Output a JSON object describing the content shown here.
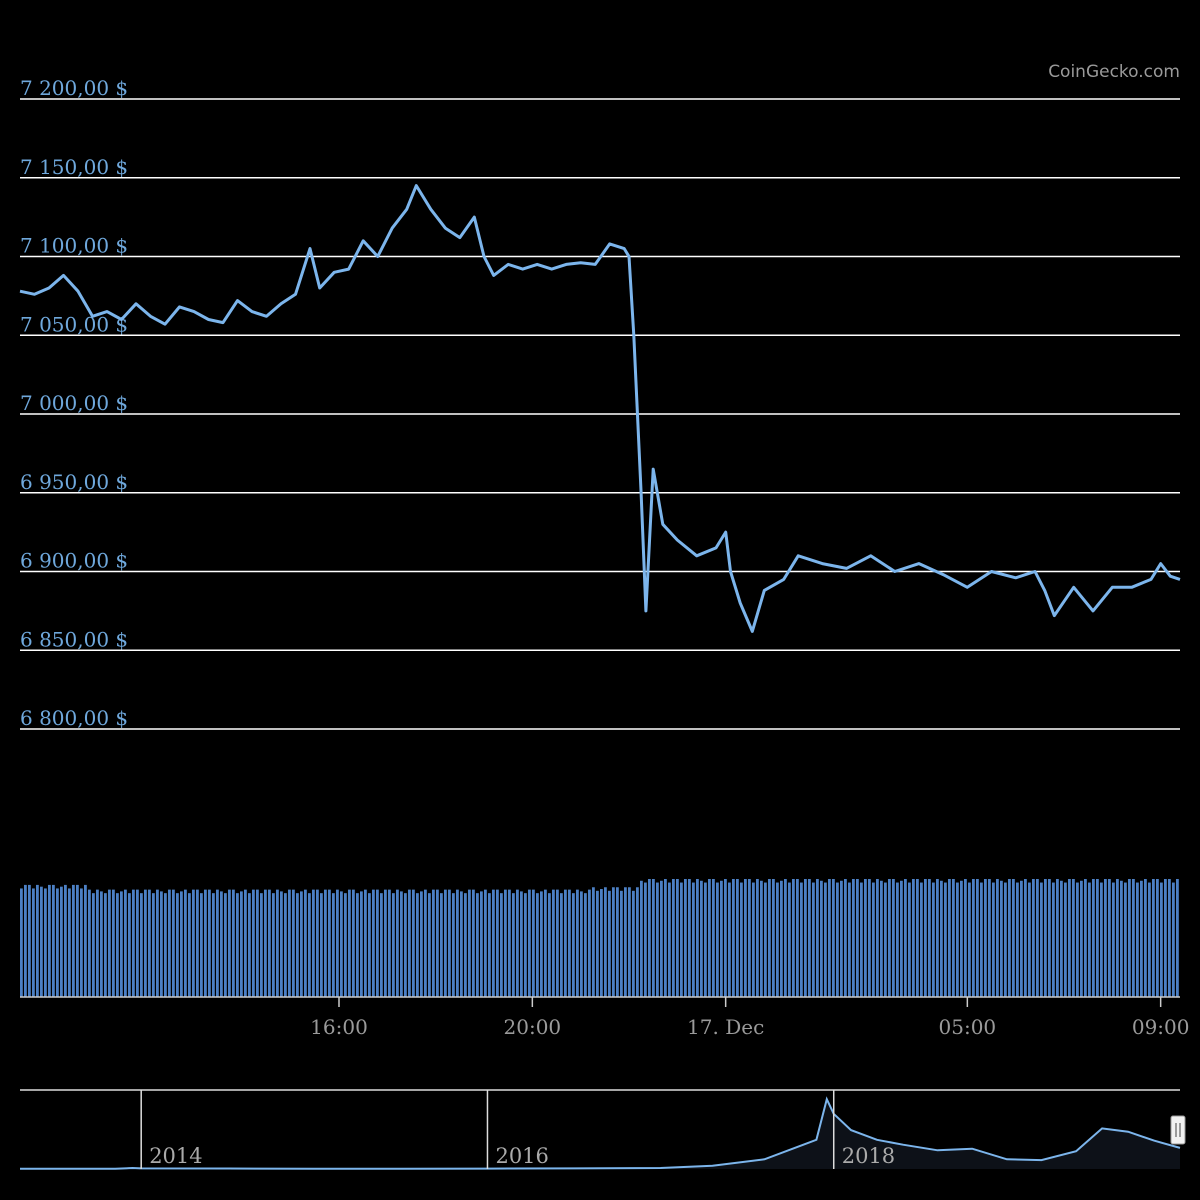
{
  "credit": "CoinGecko.com",
  "colors": {
    "background": "#000000",
    "line": "#7cb5ec",
    "volume": "#4c80c4",
    "grid": "#ffffff",
    "axis_label": "#6fa8dc",
    "time_label": "#9a9a9a"
  },
  "chart_data": {
    "type": "line",
    "title": "",
    "grid": true,
    "ylim": [
      6800,
      7200
    ],
    "y_ticks": [
      7200,
      7150,
      7100,
      7050,
      7000,
      6950,
      6900,
      6850,
      6800
    ],
    "y_tick_labels": [
      "7 200,00 $",
      "7 150,00 $",
      "7 100,00 $",
      "7 050,00 $",
      "7 000,00 $",
      "6 950,00 $",
      "6 900,00 $",
      "6 850,00 $",
      "6 800,00 $"
    ],
    "x_tick_labels": [
      "16:00",
      "20:00",
      "17. Dec",
      "05:00",
      "09:00"
    ],
    "x_ticks_hours": [
      16,
      20,
      24,
      29,
      33
    ],
    "xlim_hours": [
      9.4,
      33.4
    ],
    "series": [
      {
        "type": "line",
        "points": [
          [
            9.4,
            7078
          ],
          [
            9.7,
            7076
          ],
          [
            10.0,
            7080
          ],
          [
            10.3,
            7088
          ],
          [
            10.6,
            7078
          ],
          [
            10.9,
            7062
          ],
          [
            11.2,
            7065
          ],
          [
            11.5,
            7060
          ],
          [
            11.8,
            7070
          ],
          [
            12.1,
            7062
          ],
          [
            12.4,
            7057
          ],
          [
            12.7,
            7068
          ],
          [
            13.0,
            7065
          ],
          [
            13.3,
            7060
          ],
          [
            13.6,
            7058
          ],
          [
            13.9,
            7072
          ],
          [
            14.2,
            7065
          ],
          [
            14.5,
            7062
          ],
          [
            14.8,
            7070
          ],
          [
            15.1,
            7076
          ],
          [
            15.4,
            7105
          ],
          [
            15.6,
            7080
          ],
          [
            15.9,
            7090
          ],
          [
            16.2,
            7092
          ],
          [
            16.5,
            7110
          ],
          [
            16.8,
            7100
          ],
          [
            17.1,
            7118
          ],
          [
            17.4,
            7130
          ],
          [
            17.6,
            7145
          ],
          [
            17.9,
            7130
          ],
          [
            18.2,
            7118
          ],
          [
            18.5,
            7112
          ],
          [
            18.8,
            7125
          ],
          [
            19.0,
            7100
          ],
          [
            19.2,
            7088
          ],
          [
            19.5,
            7095
          ],
          [
            19.8,
            7092
          ],
          [
            20.1,
            7095
          ],
          [
            20.4,
            7092
          ],
          [
            20.7,
            7095
          ],
          [
            21.0,
            7096
          ],
          [
            21.3,
            7095
          ],
          [
            21.6,
            7108
          ],
          [
            21.9,
            7105
          ],
          [
            22.0,
            7100
          ],
          [
            22.1,
            7050
          ],
          [
            22.25,
            6950
          ],
          [
            22.35,
            6875
          ],
          [
            22.5,
            6965
          ],
          [
            22.7,
            6930
          ],
          [
            23.0,
            6920
          ],
          [
            23.4,
            6910
          ],
          [
            23.8,
            6915
          ],
          [
            24.0,
            6925
          ],
          [
            24.1,
            6900
          ],
          [
            24.3,
            6880
          ],
          [
            24.55,
            6862
          ],
          [
            24.8,
            6888
          ],
          [
            25.2,
            6895
          ],
          [
            25.5,
            6910
          ],
          [
            26.0,
            6905
          ],
          [
            26.5,
            6902
          ],
          [
            27.0,
            6910
          ],
          [
            27.5,
            6900
          ],
          [
            28.0,
            6905
          ],
          [
            28.5,
            6898
          ],
          [
            29.0,
            6890
          ],
          [
            29.5,
            6900
          ],
          [
            30.0,
            6896
          ],
          [
            30.4,
            6900
          ],
          [
            30.6,
            6888
          ],
          [
            30.8,
            6872
          ],
          [
            31.2,
            6890
          ],
          [
            31.6,
            6875
          ],
          [
            32.0,
            6890
          ],
          [
            32.4,
            6890
          ],
          [
            32.8,
            6895
          ],
          [
            33.0,
            6905
          ],
          [
            33.2,
            6897
          ],
          [
            33.4,
            6895
          ]
        ]
      },
      {
        "type": "column",
        "name": "volume",
        "levels": [
          {
            "from": 9.4,
            "to": 10.8,
            "value": 0.95
          },
          {
            "from": 10.8,
            "to": 21.2,
            "value": 0.91
          },
          {
            "from": 21.2,
            "to": 22.2,
            "value": 0.93
          },
          {
            "from": 22.2,
            "to": 33.4,
            "value": 1.0
          }
        ]
      }
    ],
    "navigator": {
      "x_tick_labels": [
        "2014",
        "2016",
        "2018"
      ],
      "x_ticks": [
        2014.0,
        2016.0,
        2018.0
      ],
      "xlim": [
        2013.3,
        2020.0
      ],
      "points": [
        [
          2013.3,
          2
        ],
        [
          2013.6,
          2
        ],
        [
          2013.85,
          3
        ],
        [
          2013.95,
          12
        ],
        [
          2014.0,
          8
        ],
        [
          2014.5,
          6
        ],
        [
          2015.0,
          3
        ],
        [
          2015.5,
          3
        ],
        [
          2016.0,
          5
        ],
        [
          2016.5,
          8
        ],
        [
          2017.0,
          12
        ],
        [
          2017.3,
          40
        ],
        [
          2017.6,
          120
        ],
        [
          2017.9,
          360
        ],
        [
          2017.96,
          860
        ],
        [
          2018.0,
          680
        ],
        [
          2018.1,
          480
        ],
        [
          2018.25,
          360
        ],
        [
          2018.4,
          300
        ],
        [
          2018.6,
          230
        ],
        [
          2018.8,
          250
        ],
        [
          2019.0,
          120
        ],
        [
          2019.2,
          110
        ],
        [
          2019.4,
          220
        ],
        [
          2019.55,
          500
        ],
        [
          2019.7,
          460
        ],
        [
          2019.85,
          350
        ],
        [
          2020.0,
          260
        ]
      ]
    }
  }
}
